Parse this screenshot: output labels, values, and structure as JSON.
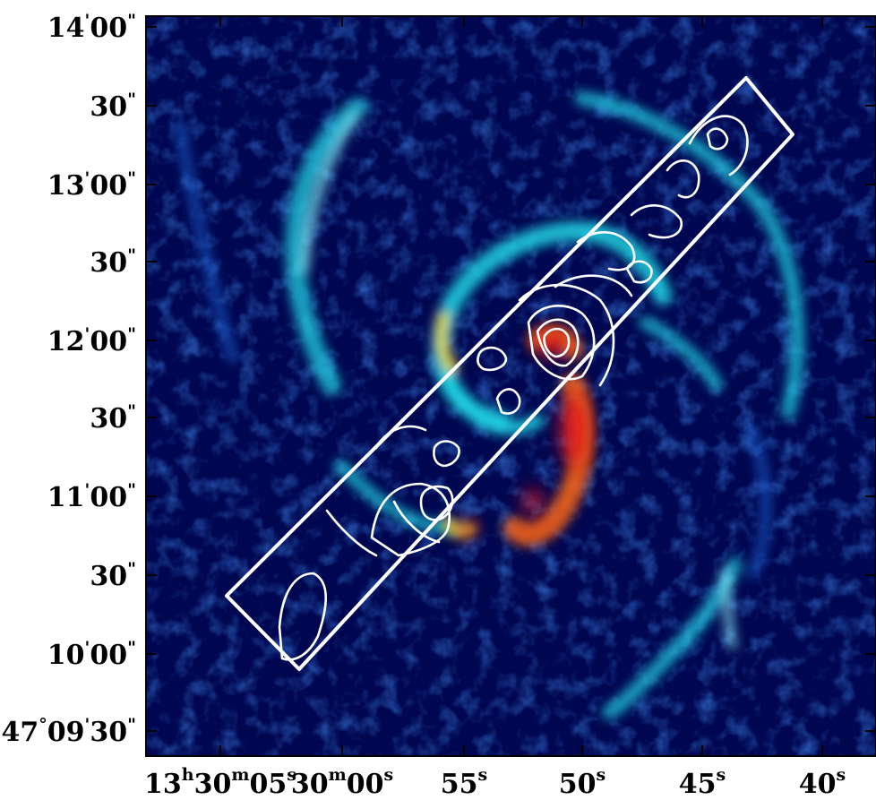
{
  "figure": {
    "colors": {
      "background": "#00064f",
      "contours": "#ffffff",
      "cmap_low": "#00064f",
      "cmap_mid": "#1fd6e4",
      "cmap_high": "#e9141b"
    },
    "y_ticks": [
      {
        "id": "dec-14-00",
        "main": "14",
        "sup1": "'",
        "main2": "00",
        "sup2": "\""
      },
      {
        "id": "dec-13-30",
        "main": "30",
        "sup2": "\""
      },
      {
        "id": "dec-13-00",
        "main": "13",
        "sup1": "'",
        "main2": "00",
        "sup2": "\""
      },
      {
        "id": "dec-12-30",
        "main": "30",
        "sup2": "\""
      },
      {
        "id": "dec-12-00",
        "main": "12",
        "sup1": "'",
        "main2": "00",
        "sup2": "\""
      },
      {
        "id": "dec-11-30",
        "main": "30",
        "sup2": "\""
      },
      {
        "id": "dec-11-00",
        "main": "11",
        "sup1": "'",
        "main2": "00",
        "sup2": "\""
      },
      {
        "id": "dec-10-30",
        "main": "30",
        "sup2": "\""
      },
      {
        "id": "dec-10-00",
        "main": "10",
        "sup1": "'",
        "main2": "00",
        "sup2": "\""
      },
      {
        "id": "dec-09-30",
        "main": "47",
        "sup1": "°",
        "main2": "09",
        "sup3": "'",
        "main3": "30",
        "sup2": "\""
      }
    ],
    "x_ticks": [
      {
        "id": "ra-30-05",
        "parts": [
          "13",
          "h",
          "30",
          "m",
          "05",
          "s"
        ]
      },
      {
        "id": "ra-30-00",
        "parts": [
          "30",
          "m",
          "00",
          "s"
        ]
      },
      {
        "id": "ra-55",
        "parts": [
          "55",
          "s"
        ]
      },
      {
        "id": "ra-50",
        "parts": [
          "50",
          "s"
        ]
      },
      {
        "id": "ra-45",
        "parts": [
          "45",
          "s"
        ]
      },
      {
        "id": "ra-40",
        "parts": [
          "40",
          "s"
        ]
      }
    ]
  }
}
